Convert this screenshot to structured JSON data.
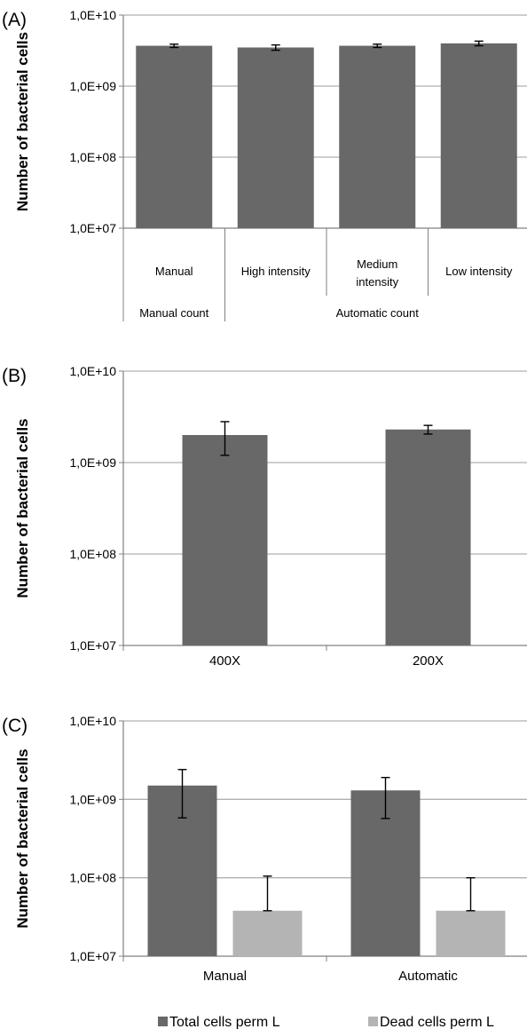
{
  "chart_data": [
    {
      "panel_label": "(A)",
      "type": "bar",
      "ylabel": "Number of bacterial cells",
      "yscale": "log",
      "ylim": [
        10000000,
        10000000000
      ],
      "yticks": [
        "1,0E+07",
        "1,0E+08",
        "1,0E+09",
        "1,0E+10"
      ],
      "grid": true,
      "categories": [
        "Manual",
        "High intensity",
        "Medium intensity",
        "Low intensity"
      ],
      "groups": [
        {
          "label": "Manual count",
          "span": 1
        },
        {
          "label": "Automatic count",
          "span": 3
        }
      ],
      "series": [
        {
          "values": [
            3700000000,
            3500000000,
            3700000000,
            4000000000
          ],
          "errors": [
            200000000,
            300000000,
            200000000,
            300000000
          ],
          "color": "#686868"
        }
      ]
    },
    {
      "panel_label": "(B)",
      "type": "bar",
      "ylabel": "Number of bacterial  cells",
      "yscale": "log",
      "ylim": [
        10000000,
        10000000000
      ],
      "yticks": [
        "1,0E+07",
        "1,0E+08",
        "1,0E+09",
        "1,0E+10"
      ],
      "grid": true,
      "categories": [
        "400X",
        "200X"
      ],
      "series": [
        {
          "values": [
            2000000000,
            2300000000
          ],
          "errors": [
            800000000,
            250000000
          ],
          "color": "#686868"
        }
      ]
    },
    {
      "panel_label": "(C)",
      "type": "bar",
      "ylabel": "Number of bacterial cells",
      "yscale": "log",
      "ylim": [
        10000000,
        10000000000
      ],
      "yticks": [
        "1,0E+07",
        "1,0E+08",
        "1,0E+09",
        "1,0E+10"
      ],
      "grid": true,
      "categories": [
        "Manual",
        "Automatic"
      ],
      "legend_position": "bottom",
      "series": [
        {
          "name": "Total cells perm L",
          "values": [
            1500000000,
            1300000000
          ],
          "err_low": [
            580000000,
            570000000
          ],
          "err_high": [
            2400000000,
            1900000000
          ],
          "color": "#686868"
        },
        {
          "name": "Dead cells perm L",
          "values": [
            38000000,
            38000000
          ],
          "err_low": [
            38000000,
            38000000
          ],
          "err_high": [
            105000000,
            100000000
          ],
          "color": "#b4b4b4"
        }
      ]
    }
  ]
}
